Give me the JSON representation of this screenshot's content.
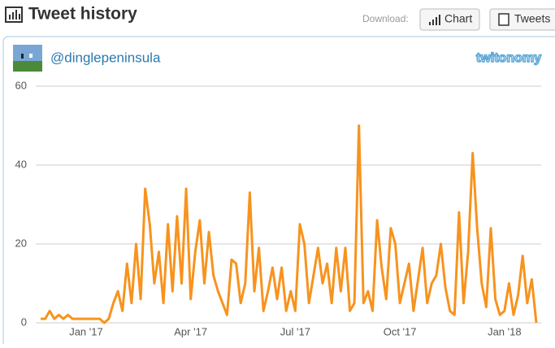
{
  "header": {
    "title": "Tweet history",
    "download_label": "Download:",
    "buttons": [
      "Chart",
      "Tweets"
    ]
  },
  "account": {
    "handle": "@dinglepeninsula",
    "logo": "twitonomy"
  },
  "chart_data": {
    "type": "line",
    "color": "#f7931e",
    "grid": true,
    "ylim": [
      0,
      60
    ],
    "yticks": [
      0,
      20,
      40,
      60
    ],
    "categories": [
      null,
      null,
      null,
      null,
      null,
      null,
      null,
      null,
      null,
      null,
      "Jan '17",
      null,
      null,
      null,
      null,
      null,
      null,
      null,
      null,
      null,
      null,
      null,
      null,
      null,
      null,
      null,
      null,
      null,
      null,
      null,
      null,
      null,
      null,
      "Apr '17",
      null,
      null,
      null,
      null,
      null,
      null,
      null,
      null,
      null,
      null,
      null,
      null,
      null,
      null,
      null,
      null,
      null,
      null,
      null,
      null,
      null,
      null,
      "Jul '17",
      null,
      null,
      null,
      null,
      null,
      null,
      null,
      null,
      null,
      null,
      null,
      null,
      null,
      null,
      null,
      null,
      null,
      null,
      null,
      null,
      null,
      null,
      "Oct '17",
      null,
      null,
      null,
      null,
      null,
      null,
      null,
      null,
      null,
      null,
      null,
      null,
      null,
      null,
      null,
      null,
      null,
      null,
      null,
      null,
      null,
      null,
      "Jan '18",
      null,
      null,
      null,
      null,
      null,
      null,
      null
    ],
    "values": [
      1,
      1,
      3,
      1,
      2,
      1,
      2,
      1,
      1,
      1,
      1,
      1,
      1,
      1,
      0,
      1,
      5,
      8,
      3,
      15,
      5,
      20,
      6,
      34,
      25,
      10,
      18,
      5,
      25,
      8,
      27,
      10,
      34,
      6,
      18,
      26,
      10,
      23,
      12,
      8,
      5,
      2,
      16,
      15,
      5,
      10,
      33,
      8,
      19,
      3,
      8,
      14,
      6,
      14,
      3,
      8,
      3,
      25,
      20,
      5,
      12,
      19,
      10,
      15,
      5,
      19,
      8,
      19,
      3,
      5,
      50,
      5,
      8,
      3,
      26,
      14,
      6,
      24,
      20,
      5,
      10,
      15,
      3,
      11,
      19,
      5,
      10,
      12,
      20,
      9,
      3,
      2,
      28,
      5,
      18,
      43,
      24,
      10,
      4,
      24,
      6,
      2,
      3,
      10,
      2,
      7,
      17,
      5,
      11,
      0
    ]
  }
}
